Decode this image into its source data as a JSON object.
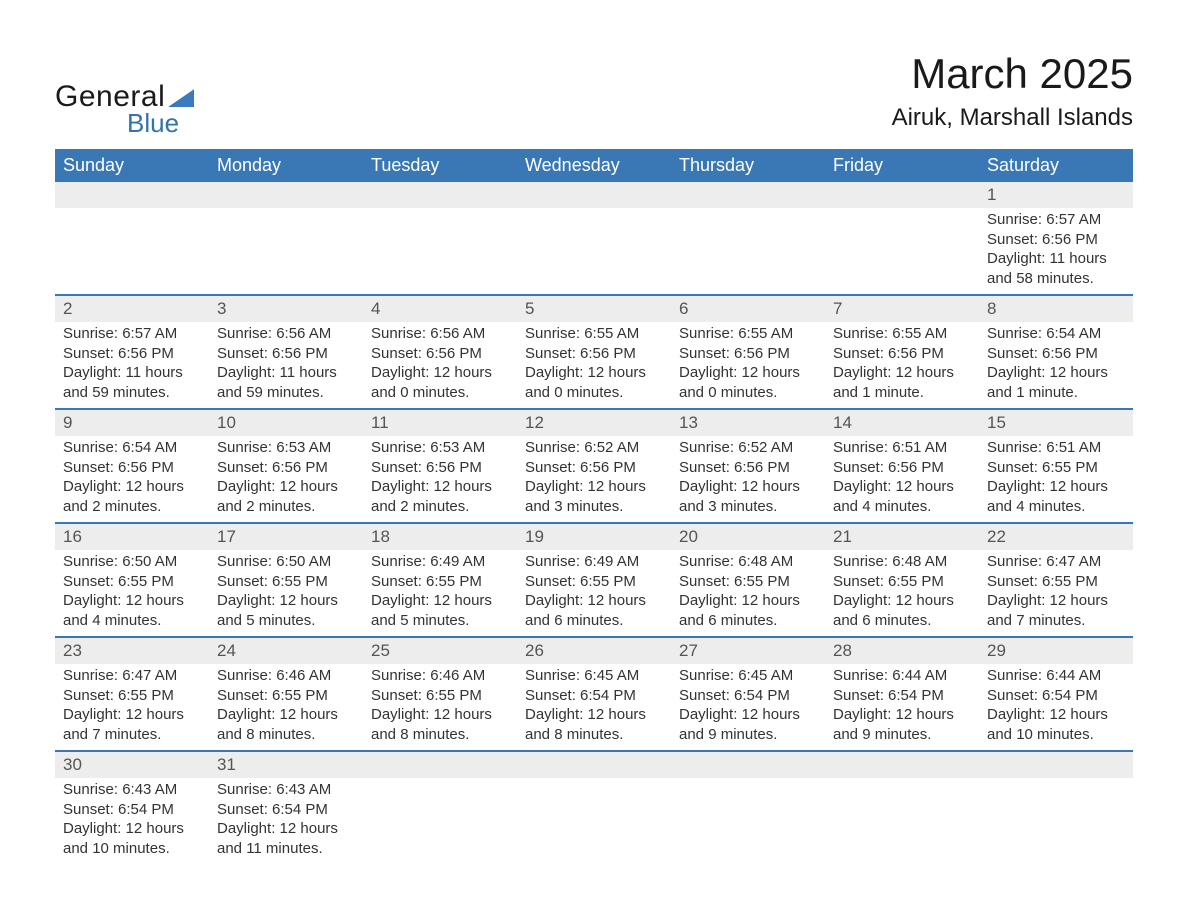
{
  "logo": {
    "text_general": "General",
    "text_blue": "Blue",
    "triangle_color": "#3172b0"
  },
  "title": "March 2025",
  "location": "Airuk, Marshall Islands",
  "colors": {
    "header_bg": "#3a78b5",
    "header_text": "#ffffff",
    "daynum_bg": "#ededed",
    "daynum_text": "#555555",
    "row_border": "#3a78b5",
    "body_text": "#333333"
  },
  "weekdays": [
    "Sunday",
    "Monday",
    "Tuesday",
    "Wednesday",
    "Thursday",
    "Friday",
    "Saturday"
  ],
  "weeks": [
    [
      null,
      null,
      null,
      null,
      null,
      null,
      {
        "d": "1",
        "sr": "Sunrise: 6:57 AM",
        "ss": "Sunset: 6:56 PM",
        "dl1": "Daylight: 11 hours",
        "dl2": "and 58 minutes."
      }
    ],
    [
      {
        "d": "2",
        "sr": "Sunrise: 6:57 AM",
        "ss": "Sunset: 6:56 PM",
        "dl1": "Daylight: 11 hours",
        "dl2": "and 59 minutes."
      },
      {
        "d": "3",
        "sr": "Sunrise: 6:56 AM",
        "ss": "Sunset: 6:56 PM",
        "dl1": "Daylight: 11 hours",
        "dl2": "and 59 minutes."
      },
      {
        "d": "4",
        "sr": "Sunrise: 6:56 AM",
        "ss": "Sunset: 6:56 PM",
        "dl1": "Daylight: 12 hours",
        "dl2": "and 0 minutes."
      },
      {
        "d": "5",
        "sr": "Sunrise: 6:55 AM",
        "ss": "Sunset: 6:56 PM",
        "dl1": "Daylight: 12 hours",
        "dl2": "and 0 minutes."
      },
      {
        "d": "6",
        "sr": "Sunrise: 6:55 AM",
        "ss": "Sunset: 6:56 PM",
        "dl1": "Daylight: 12 hours",
        "dl2": "and 0 minutes."
      },
      {
        "d": "7",
        "sr": "Sunrise: 6:55 AM",
        "ss": "Sunset: 6:56 PM",
        "dl1": "Daylight: 12 hours",
        "dl2": "and 1 minute."
      },
      {
        "d": "8",
        "sr": "Sunrise: 6:54 AM",
        "ss": "Sunset: 6:56 PM",
        "dl1": "Daylight: 12 hours",
        "dl2": "and 1 minute."
      }
    ],
    [
      {
        "d": "9",
        "sr": "Sunrise: 6:54 AM",
        "ss": "Sunset: 6:56 PM",
        "dl1": "Daylight: 12 hours",
        "dl2": "and 2 minutes."
      },
      {
        "d": "10",
        "sr": "Sunrise: 6:53 AM",
        "ss": "Sunset: 6:56 PM",
        "dl1": "Daylight: 12 hours",
        "dl2": "and 2 minutes."
      },
      {
        "d": "11",
        "sr": "Sunrise: 6:53 AM",
        "ss": "Sunset: 6:56 PM",
        "dl1": "Daylight: 12 hours",
        "dl2": "and 2 minutes."
      },
      {
        "d": "12",
        "sr": "Sunrise: 6:52 AM",
        "ss": "Sunset: 6:56 PM",
        "dl1": "Daylight: 12 hours",
        "dl2": "and 3 minutes."
      },
      {
        "d": "13",
        "sr": "Sunrise: 6:52 AM",
        "ss": "Sunset: 6:56 PM",
        "dl1": "Daylight: 12 hours",
        "dl2": "and 3 minutes."
      },
      {
        "d": "14",
        "sr": "Sunrise: 6:51 AM",
        "ss": "Sunset: 6:56 PM",
        "dl1": "Daylight: 12 hours",
        "dl2": "and 4 minutes."
      },
      {
        "d": "15",
        "sr": "Sunrise: 6:51 AM",
        "ss": "Sunset: 6:55 PM",
        "dl1": "Daylight: 12 hours",
        "dl2": "and 4 minutes."
      }
    ],
    [
      {
        "d": "16",
        "sr": "Sunrise: 6:50 AM",
        "ss": "Sunset: 6:55 PM",
        "dl1": "Daylight: 12 hours",
        "dl2": "and 4 minutes."
      },
      {
        "d": "17",
        "sr": "Sunrise: 6:50 AM",
        "ss": "Sunset: 6:55 PM",
        "dl1": "Daylight: 12 hours",
        "dl2": "and 5 minutes."
      },
      {
        "d": "18",
        "sr": "Sunrise: 6:49 AM",
        "ss": "Sunset: 6:55 PM",
        "dl1": "Daylight: 12 hours",
        "dl2": "and 5 minutes."
      },
      {
        "d": "19",
        "sr": "Sunrise: 6:49 AM",
        "ss": "Sunset: 6:55 PM",
        "dl1": "Daylight: 12 hours",
        "dl2": "and 6 minutes."
      },
      {
        "d": "20",
        "sr": "Sunrise: 6:48 AM",
        "ss": "Sunset: 6:55 PM",
        "dl1": "Daylight: 12 hours",
        "dl2": "and 6 minutes."
      },
      {
        "d": "21",
        "sr": "Sunrise: 6:48 AM",
        "ss": "Sunset: 6:55 PM",
        "dl1": "Daylight: 12 hours",
        "dl2": "and 6 minutes."
      },
      {
        "d": "22",
        "sr": "Sunrise: 6:47 AM",
        "ss": "Sunset: 6:55 PM",
        "dl1": "Daylight: 12 hours",
        "dl2": "and 7 minutes."
      }
    ],
    [
      {
        "d": "23",
        "sr": "Sunrise: 6:47 AM",
        "ss": "Sunset: 6:55 PM",
        "dl1": "Daylight: 12 hours",
        "dl2": "and 7 minutes."
      },
      {
        "d": "24",
        "sr": "Sunrise: 6:46 AM",
        "ss": "Sunset: 6:55 PM",
        "dl1": "Daylight: 12 hours",
        "dl2": "and 8 minutes."
      },
      {
        "d": "25",
        "sr": "Sunrise: 6:46 AM",
        "ss": "Sunset: 6:55 PM",
        "dl1": "Daylight: 12 hours",
        "dl2": "and 8 minutes."
      },
      {
        "d": "26",
        "sr": "Sunrise: 6:45 AM",
        "ss": "Sunset: 6:54 PM",
        "dl1": "Daylight: 12 hours",
        "dl2": "and 8 minutes."
      },
      {
        "d": "27",
        "sr": "Sunrise: 6:45 AM",
        "ss": "Sunset: 6:54 PM",
        "dl1": "Daylight: 12 hours",
        "dl2": "and 9 minutes."
      },
      {
        "d": "28",
        "sr": "Sunrise: 6:44 AM",
        "ss": "Sunset: 6:54 PM",
        "dl1": "Daylight: 12 hours",
        "dl2": "and 9 minutes."
      },
      {
        "d": "29",
        "sr": "Sunrise: 6:44 AM",
        "ss": "Sunset: 6:54 PM",
        "dl1": "Daylight: 12 hours",
        "dl2": "and 10 minutes."
      }
    ],
    [
      {
        "d": "30",
        "sr": "Sunrise: 6:43 AM",
        "ss": "Sunset: 6:54 PM",
        "dl1": "Daylight: 12 hours",
        "dl2": "and 10 minutes."
      },
      {
        "d": "31",
        "sr": "Sunrise: 6:43 AM",
        "ss": "Sunset: 6:54 PM",
        "dl1": "Daylight: 12 hours",
        "dl2": "and 11 minutes."
      },
      null,
      null,
      null,
      null,
      null
    ]
  ]
}
